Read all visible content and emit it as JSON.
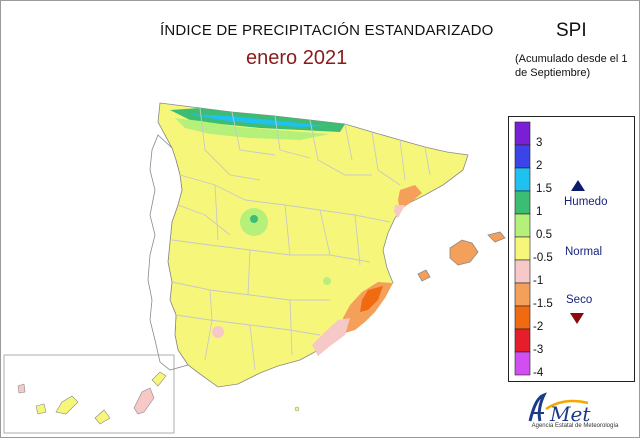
{
  "header": {
    "title": "ÍNDICE DE PRECIPITACIÓN ESTANDARIZADO",
    "period": "enero 2021",
    "index_code": "SPI",
    "accumulation_note": "(Acumulado desde el 1 de Septiembre)"
  },
  "legend": {
    "ticks": [
      "3",
      "2",
      "1.5",
      "1",
      "0.5",
      "-0.5",
      "-1",
      "-1.5",
      "-2",
      "-3",
      "-4"
    ],
    "classes": [
      {
        "range": "> 3",
        "color": "#7a1fd6"
      },
      {
        "range": "2 - 3",
        "color": "#3b44e8"
      },
      {
        "range": "1.5 - 2",
        "color": "#1ec1ef"
      },
      {
        "range": "1 - 1.5",
        "color": "#3dbd73"
      },
      {
        "range": "0.5 - 1",
        "color": "#b5f07a"
      },
      {
        "range": "-0.5 - 0.5",
        "color": "#f6f77a"
      },
      {
        "range": "-1 - -0.5",
        "color": "#f6c8c8"
      },
      {
        "range": "-1.5 - -1",
        "color": "#f4a05a"
      },
      {
        "range": "-2 - -1.5",
        "color": "#f06a12"
      },
      {
        "range": "-3 - -2",
        "color": "#e61e2c"
      },
      {
        "range": "< -3",
        "color": "#d14ef0"
      }
    ],
    "labels": {
      "wet": "Humedo",
      "normal": "Normal",
      "dry": "Seco"
    }
  },
  "logo": {
    "name": "AEMet",
    "subtitle": "Agencia Estatal de Meteorología"
  },
  "colors": {
    "wet_arrow": "#0d1b6b",
    "dry_arrow": "#8b0a0a",
    "title_period": "#8b1a1a",
    "province_border": "#c8c8c8"
  }
}
